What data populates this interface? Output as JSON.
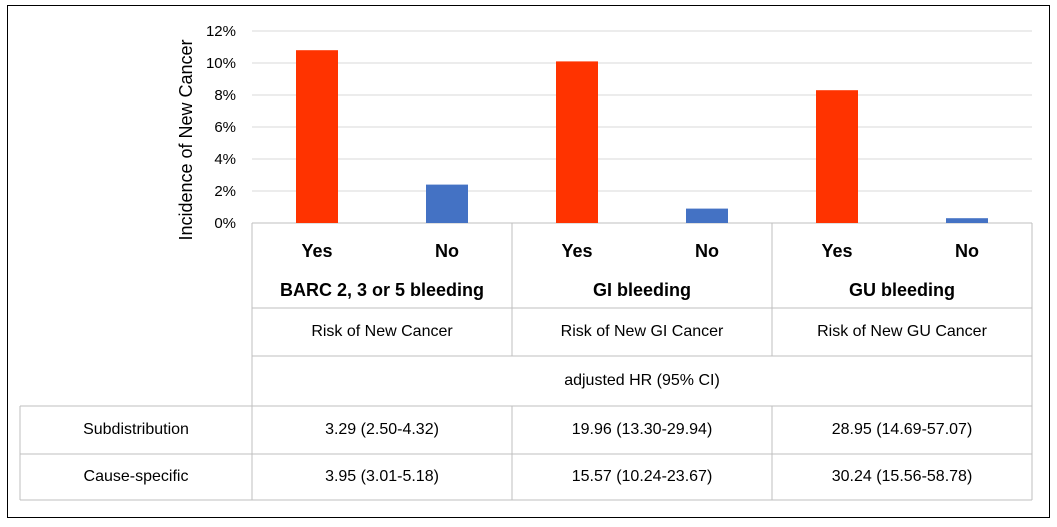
{
  "chart_data": {
    "type": "bar",
    "ylabel": "Incidence of New Cancer",
    "ylim": [
      0,
      12
    ],
    "y_ticks": [
      "0%",
      "2%",
      "4%",
      "6%",
      "8%",
      "10%",
      "12%"
    ],
    "grid": true,
    "categories": [
      "Yes",
      "No",
      "Yes",
      "No",
      "Yes",
      "No"
    ],
    "groups": [
      "BARC  2, 3 or 5 bleeding",
      "GI bleeding",
      "GU bleeding"
    ],
    "values": [
      10.8,
      2.4,
      10.1,
      0.9,
      8.3,
      0.3
    ],
    "colors": {
      "yes": "#ff3300",
      "no": "#4472c4",
      "grid": "#d9d9d9",
      "border": "#bfbfbf"
    }
  },
  "table": {
    "risk_labels": [
      "Risk of New Cancer",
      "Risk of New GI Cancer",
      "Risk of New GU Cancer"
    ],
    "hr_header": "adjusted HR (95% CI)",
    "rows": [
      {
        "label": "Subdistribution",
        "values": [
          "3.29 (2.50-4.32)",
          "19.96 (13.30-29.94)",
          "28.95 (14.69-57.07)"
        ]
      },
      {
        "label": "Cause-specific",
        "values": [
          "3.95 (3.01-5.18)",
          "15.57 (10.24-23.67)",
          "30.24 (15.56-58.78)"
        ]
      }
    ]
  }
}
